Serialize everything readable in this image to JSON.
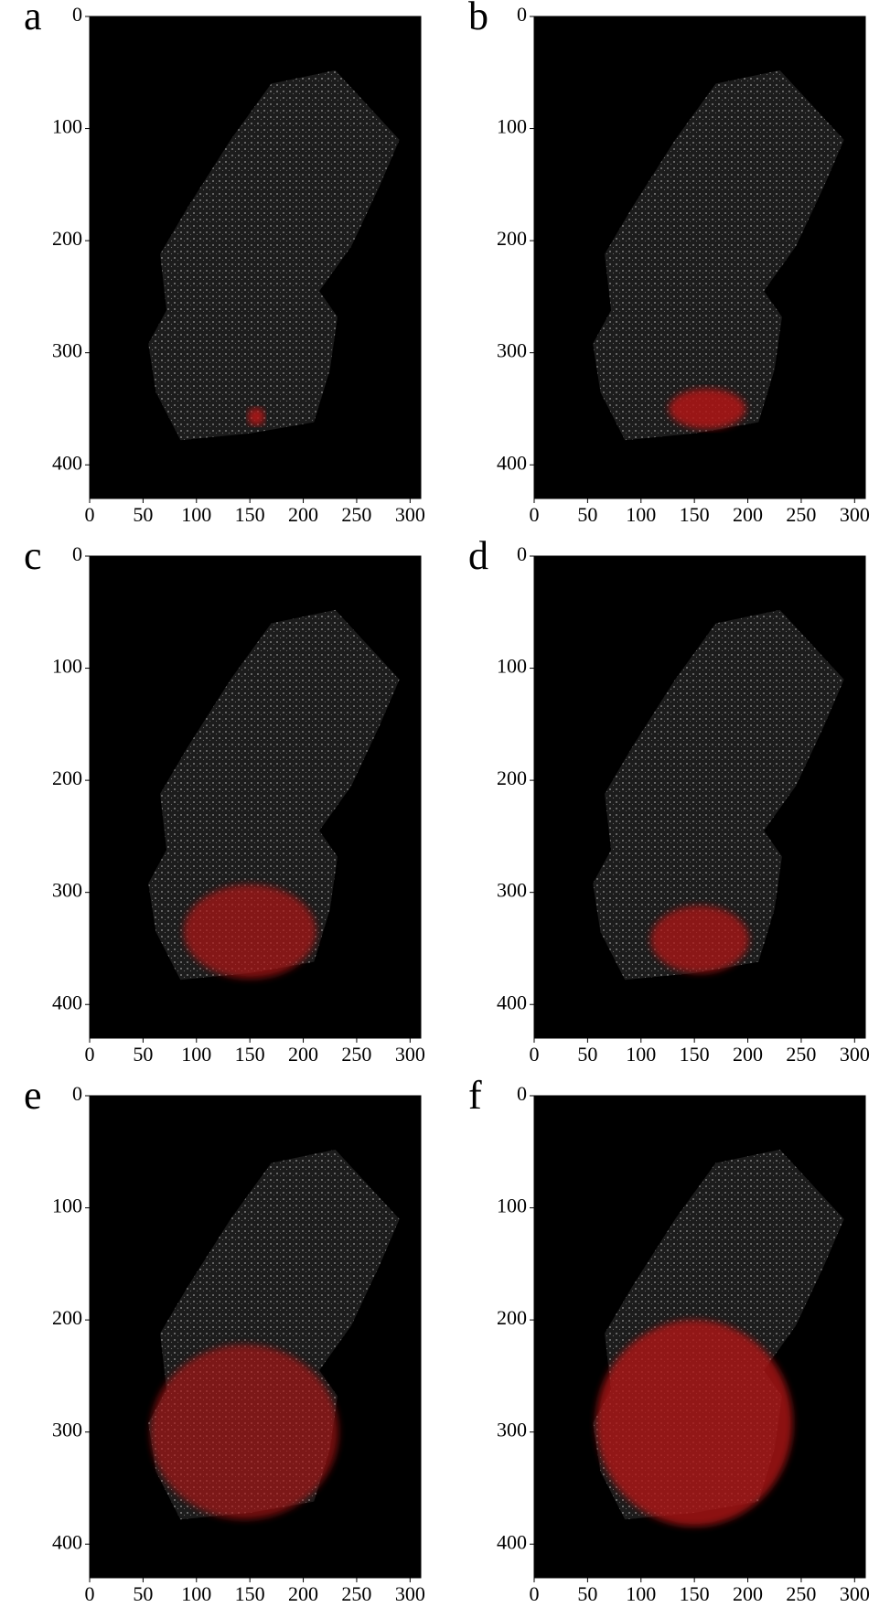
{
  "chart_data": [
    {
      "type": "image",
      "panel_label": "a",
      "xlim": [
        0,
        310
      ],
      "ylim": [
        0,
        430
      ],
      "xticks": [
        0,
        50,
        100,
        150,
        200,
        250,
        300
      ],
      "yticks": [
        0,
        100,
        200,
        300,
        400
      ]
    },
    {
      "type": "image",
      "panel_label": "b",
      "xlim": [
        0,
        310
      ],
      "ylim": [
        0,
        430
      ],
      "xticks": [
        0,
        50,
        100,
        150,
        200,
        250,
        300
      ],
      "yticks": [
        0,
        100,
        200,
        300,
        400
      ]
    },
    {
      "type": "image",
      "panel_label": "c",
      "xlim": [
        0,
        310
      ],
      "ylim": [
        0,
        430
      ],
      "xticks": [
        0,
        50,
        100,
        150,
        200,
        250,
        300
      ],
      "yticks": [
        0,
        100,
        200,
        300,
        400
      ]
    },
    {
      "type": "image",
      "panel_label": "d",
      "xlim": [
        0,
        310
      ],
      "ylim": [
        0,
        430
      ],
      "xticks": [
        0,
        50,
        100,
        150,
        200,
        250,
        300
      ],
      "yticks": [
        0,
        100,
        200,
        300,
        400
      ]
    },
    {
      "type": "image",
      "panel_label": "e",
      "xlim": [
        0,
        310
      ],
      "ylim": [
        0,
        430
      ],
      "xticks": [
        0,
        50,
        100,
        150,
        200,
        250,
        300
      ],
      "yticks": [
        0,
        100,
        200,
        300,
        400
      ]
    },
    {
      "type": "image",
      "panel_label": "f",
      "xlim": [
        0,
        310
      ],
      "ylim": [
        0,
        430
      ],
      "xticks": [
        0,
        50,
        100,
        150,
        200,
        250,
        300
      ],
      "yticks": [
        0,
        100,
        200,
        300,
        400
      ]
    }
  ]
}
